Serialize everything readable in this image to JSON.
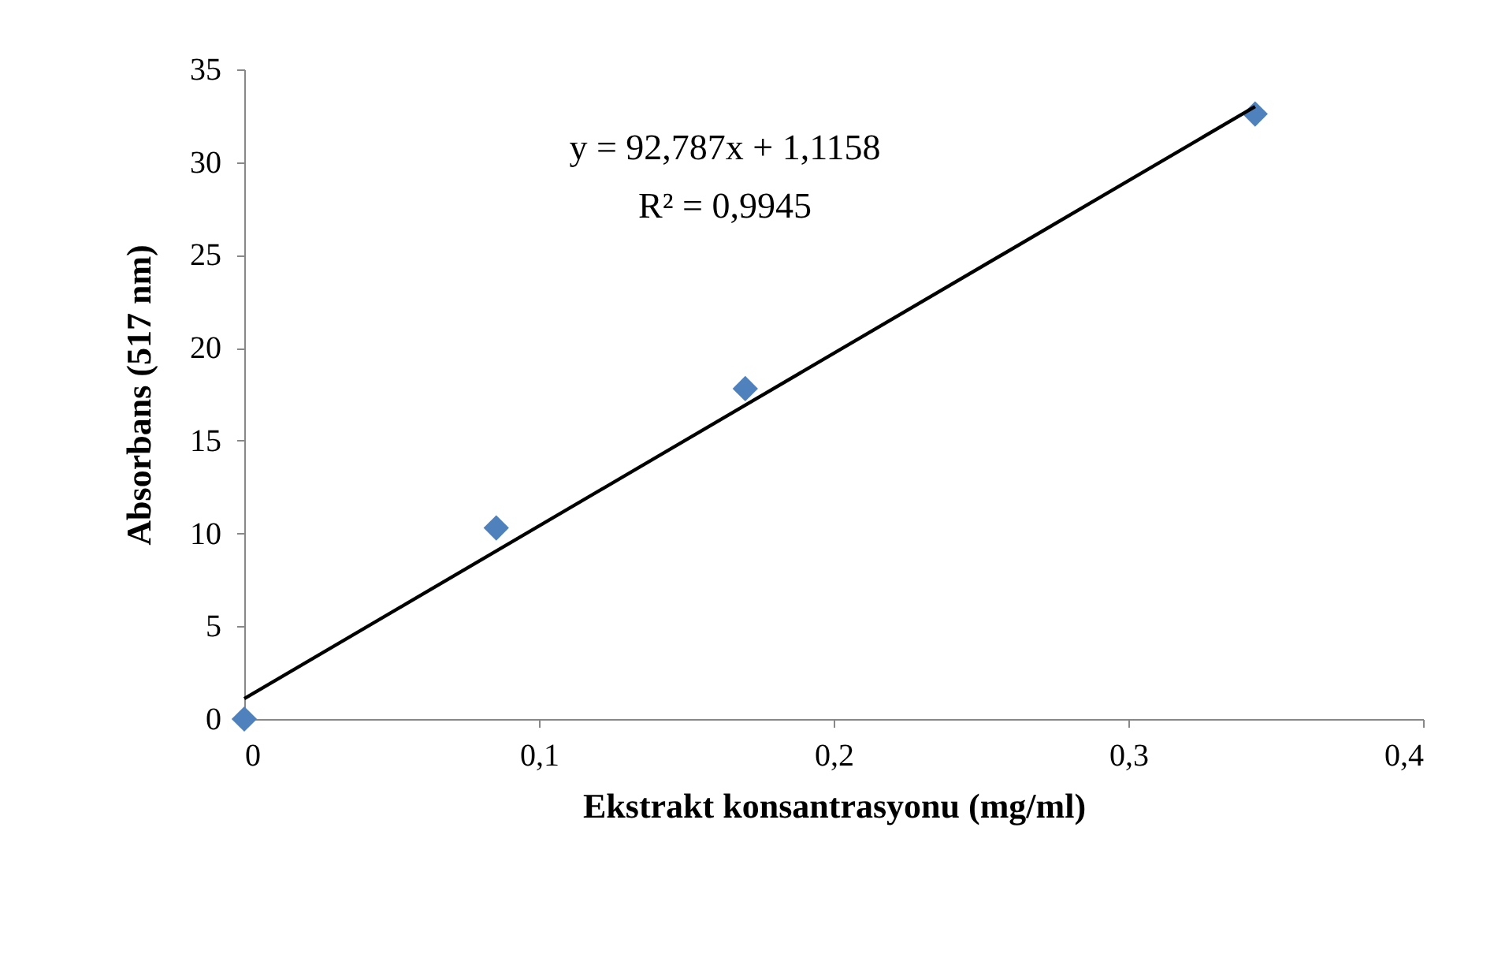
{
  "chart_data": {
    "type": "scatter",
    "xlabel": "Ekstrakt konsantrasyonu (mg/ml)",
    "ylabel": "Absorbans (517 nm)",
    "x": [
      0,
      0.0855,
      0.17,
      0.343
    ],
    "series": [
      {
        "color": "#4f81bd",
        "values": [
          0,
          10.3,
          17.8,
          32.6
        ],
        "marker": "diamond"
      },
      {
        "type": "line",
        "color": "#000000",
        "x": [
          0,
          0.343
        ],
        "values": [
          1.1,
          33.0
        ],
        "marker": "none"
      }
    ],
    "annotations": [
      "y = 92,787x + 1,1158",
      "R² = 0,9945"
    ],
    "xlim": [
      0,
      0.4
    ],
    "xticks": [
      {
        "value": 0,
        "label": "0"
      },
      {
        "value": 0.1,
        "label": "0,1"
      },
      {
        "value": 0.2,
        "label": "0,2"
      },
      {
        "value": 0.3,
        "label": "0,3"
      },
      {
        "value": 0.4,
        "label": "0,4"
      }
    ],
    "ylim": [
      0,
      35
    ],
    "yticks": [
      0,
      5,
      10,
      15,
      20,
      25,
      30,
      35
    ],
    "grid": false
  }
}
